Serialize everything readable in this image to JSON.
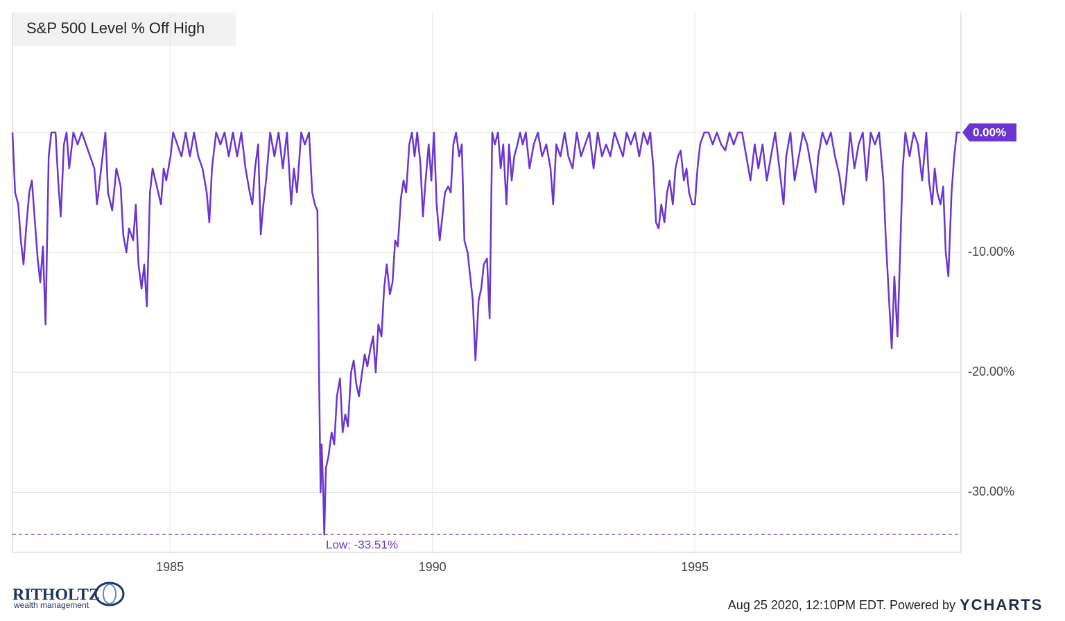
{
  "chart_data": {
    "type": "line",
    "title": "S&P 500 Level % Off High",
    "x": [
      1982.0,
      1982.05,
      1982.11,
      1982.16,
      1982.21,
      1982.26,
      1982.32,
      1982.37,
      1982.42,
      1982.48,
      1982.53,
      1982.58,
      1982.63,
      1982.69,
      1982.74,
      1982.82,
      1982.87,
      1982.92,
      1982.98,
      1983.03,
      1983.08,
      1983.16,
      1983.24,
      1983.32,
      1983.4,
      1983.48,
      1983.56,
      1983.61,
      1983.69,
      1983.77,
      1983.82,
      1983.9,
      1983.98,
      1984.06,
      1984.11,
      1984.17,
      1984.22,
      1984.3,
      1984.35,
      1984.4,
      1984.46,
      1984.51,
      1984.56,
      1984.62,
      1984.67,
      1984.75,
      1984.83,
      1984.88,
      1984.93,
      1985.01,
      1985.06,
      1985.14,
      1985.22,
      1985.3,
      1985.38,
      1985.46,
      1985.54,
      1985.62,
      1985.7,
      1985.75,
      1985.8,
      1985.88,
      1985.96,
      1986.04,
      1986.12,
      1986.2,
      1986.28,
      1986.36,
      1986.44,
      1986.52,
      1986.57,
      1986.62,
      1986.68,
      1986.73,
      1986.78,
      1986.83,
      1986.91,
      1986.99,
      1987.07,
      1987.15,
      1987.23,
      1987.31,
      1987.36,
      1987.42,
      1987.5,
      1987.57,
      1987.65,
      1987.71,
      1987.76,
      1987.81,
      1987.84,
      1987.87,
      1987.89,
      1987.92,
      1987.94,
      1987.97,
      1988.02,
      1988.08,
      1988.13,
      1988.18,
      1988.24,
      1988.29,
      1988.34,
      1988.39,
      1988.45,
      1988.5,
      1988.55,
      1988.6,
      1988.66,
      1988.71,
      1988.76,
      1988.82,
      1988.87,
      1988.92,
      1988.97,
      1989.03,
      1989.08,
      1989.13,
      1989.19,
      1989.24,
      1989.29,
      1989.34,
      1989.4,
      1989.45,
      1989.5,
      1989.56,
      1989.61,
      1989.66,
      1989.71,
      1989.77,
      1989.82,
      1989.87,
      1989.93,
      1989.98,
      1990.03,
      1990.08,
      1990.14,
      1990.19,
      1990.24,
      1990.3,
      1990.35,
      1990.4,
      1990.45,
      1990.51,
      1990.56,
      1990.61,
      1990.67,
      1990.72,
      1990.77,
      1990.82,
      1990.88,
      1990.93,
      1990.98,
      1991.04,
      1991.09,
      1991.14,
      1991.19,
      1991.25,
      1991.3,
      1991.35,
      1991.41,
      1991.46,
      1991.51,
      1991.56,
      1991.62,
      1991.67,
      1991.72,
      1991.78,
      1991.85,
      1991.93,
      1992.01,
      1992.09,
      1992.17,
      1992.25,
      1992.3,
      1992.36,
      1992.44,
      1992.52,
      1992.59,
      1992.67,
      1992.75,
      1992.83,
      1992.91,
      1992.99,
      1993.07,
      1993.15,
      1993.23,
      1993.31,
      1993.39,
      1993.47,
      1993.55,
      1993.63,
      1993.7,
      1993.78,
      1993.86,
      1993.94,
      1994.02,
      1994.1,
      1994.15,
      1994.21,
      1994.26,
      1994.31,
      1994.36,
      1994.42,
      1994.47,
      1994.52,
      1994.58,
      1994.63,
      1994.68,
      1994.73,
      1994.79,
      1994.84,
      1994.89,
      1994.95,
      1995.0,
      1995.05,
      1995.1,
      1995.18,
      1995.26,
      1995.34,
      1995.42,
      1995.5,
      1995.58,
      1995.66,
      1995.74,
      1995.82,
      1995.9,
      1995.98,
      1996.06,
      1996.14,
      1996.21,
      1996.29,
      1996.37,
      1996.45,
      1996.53,
      1996.61,
      1996.69,
      1996.74,
      1996.82,
      1996.9,
      1996.98,
      1997.06,
      1997.14,
      1997.22,
      1997.3,
      1997.35,
      1997.43,
      1997.51,
      1997.59,
      1997.67,
      1997.75,
      1997.83,
      1997.88,
      1997.96,
      1998.04,
      1998.12,
      1998.2,
      1998.27,
      1998.35,
      1998.43,
      1998.51,
      1998.59,
      1998.64,
      1998.7,
      1998.75,
      1998.8,
      1998.86,
      1998.91,
      1998.96,
      1999.01,
      1999.09,
      1999.17,
      1999.25,
      1999.33,
      1999.41,
      1999.46,
      1999.52,
      1999.57,
      1999.62,
      1999.68,
      1999.73,
      1999.78,
      1999.83,
      1999.89,
      1999.94,
      1999.99,
      2000.05
    ],
    "series": [
      {
        "name": "S&P 500 Level % Off High",
        "color": "#6a35d0",
        "values": [
          0,
          -5,
          -6,
          -9,
          -11,
          -8,
          -5,
          -4,
          -7,
          -10.5,
          -12.5,
          -9.5,
          -16,
          -2,
          0,
          0,
          -4,
          -7,
          -1,
          0,
          -3,
          0,
          -1,
          0,
          -1,
          -2,
          -3,
          -6,
          -3,
          0,
          -5,
          -6.5,
          -3,
          -4.5,
          -8.5,
          -10,
          -8,
          -9,
          -6,
          -11,
          -13,
          -11,
          -14.5,
          -5,
          -3,
          -4.5,
          -6,
          -3,
          -4,
          -2,
          0,
          -1,
          -2,
          0,
          -2,
          0,
          -2,
          -3,
          -5,
          -7.5,
          -3,
          0,
          -1,
          0,
          -2,
          0,
          -2,
          0,
          -3,
          -5,
          -6,
          -3,
          -1,
          -8.5,
          -6,
          -4,
          0,
          -2,
          0,
          -3,
          0,
          -6,
          -3,
          -5,
          0,
          -1,
          0,
          -5,
          -6,
          -6.5,
          -20,
          -30,
          -26,
          -30,
          -33.51,
          -28,
          -27,
          -25,
          -26,
          -22,
          -20.5,
          -25,
          -23.5,
          -24.5,
          -20,
          -19,
          -21,
          -22,
          -20,
          -18.5,
          -19.5,
          -18,
          -17,
          -20,
          -16,
          -17,
          -13,
          -11,
          -13.5,
          -12.5,
          -9,
          -9.5,
          -5.5,
          -4,
          -5,
          -1,
          0,
          -2,
          0,
          -2.5,
          -7,
          -4,
          -1,
          -4,
          0,
          -6,
          -9,
          -7,
          -5,
          -4.5,
          -5,
          -1,
          0,
          -2,
          -1,
          -9,
          -10,
          -12,
          -14,
          -19,
          -14,
          -13,
          -11,
          -10.5,
          -15.5,
          0,
          -1,
          0,
          -3,
          -1,
          -6,
          -1,
          -4,
          -2,
          -1,
          0,
          -1,
          0,
          -3,
          -1,
          0,
          -2,
          -1,
          -3,
          -6,
          -1,
          -2,
          0,
          -2,
          -3,
          0,
          -2,
          -1,
          0,
          -3,
          0,
          -2,
          -1,
          -2,
          0,
          -1,
          -2,
          0,
          -1,
          0,
          -2,
          0,
          -1,
          0,
          -3,
          -7.5,
          -8,
          -6,
          -7.5,
          -5,
          -4,
          -6,
          -3,
          -2,
          -1.5,
          -4,
          -3,
          -5,
          -6,
          -6,
          -3,
          -1,
          0,
          0,
          -1,
          0,
          -1,
          -1.5,
          0,
          -1,
          0,
          0,
          -2,
          -4,
          -1,
          -3,
          -1,
          -4,
          -2,
          0,
          -3,
          -6,
          -2,
          0,
          -4,
          -2,
          0,
          -1,
          -3,
          -5,
          -2,
          0,
          -1,
          0,
          -2,
          -3.5,
          -6,
          -4,
          0,
          -3,
          -1,
          0,
          -4,
          0,
          -1,
          0,
          -4,
          -9,
          -14,
          -18,
          -12,
          -17,
          -10,
          -3,
          0,
          -2,
          0,
          -1,
          -4,
          0,
          -4,
          -6,
          -3,
          -5,
          -6,
          -4.5,
          -10,
          -12,
          -5,
          -2,
          0,
          0
        ]
      }
    ],
    "xlim": [
      1982,
      2000.07
    ],
    "xticks": [
      1985,
      1990,
      1995
    ],
    "ylim": [
      -35,
      10
    ],
    "yticks": [
      {
        "value": 0,
        "label": "0.00%"
      },
      {
        "value": -10,
        "label": "-10.00%"
      },
      {
        "value": -20,
        "label": "-20.00%"
      },
      {
        "value": -30,
        "label": "-30.00%"
      }
    ],
    "grid": true,
    "low": {
      "value": -33.51,
      "label": "Low: -33.51%"
    },
    "last_label": {
      "value": 0,
      "label": "0.00%"
    },
    "footer": {
      "logo": "RITHOLTZ",
      "logo_sub": "wealth management",
      "timestamp": "Aug 25 2020, 12:10PM EDT. Powered by",
      "brand": "YCHARTS"
    }
  }
}
